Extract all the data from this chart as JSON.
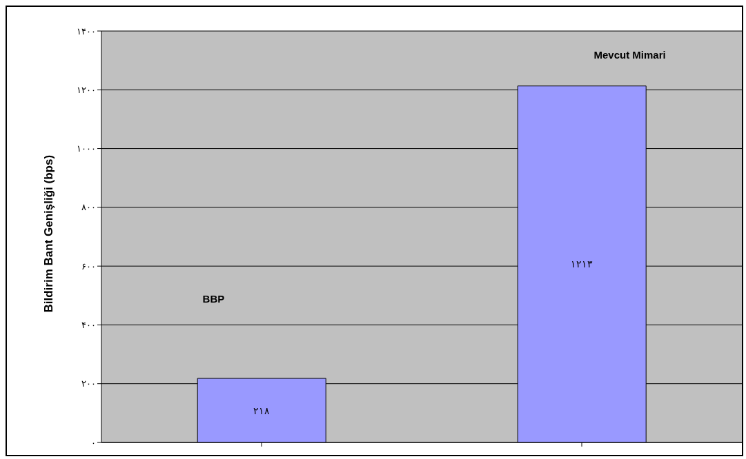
{
  "chart_data": {
    "type": "bar",
    "ylabel": "Bildirim Bant Genişliği (bps)",
    "categories": [
      null,
      null
    ],
    "values": [
      218,
      1213
    ],
    "value_labels": [
      "۲۱۸",
      "۱۲۱۳"
    ],
    "color": "#9999ff",
    "ylim": [
      0,
      1400
    ],
    "yticks": [
      {
        "value": 0,
        "label": "۰"
      },
      {
        "value": 200,
        "label": "۲۰۰"
      },
      {
        "value": 400,
        "label": "۴۰۰"
      },
      {
        "value": 600,
        "label": "۶۰۰"
      },
      {
        "value": 800,
        "label": "۸۰۰"
      },
      {
        "value": 1000,
        "label": "۱۰۰۰"
      },
      {
        "value": 1200,
        "label": "۱۲۰۰"
      },
      {
        "value": 1400,
        "label": "۱۴۰۰"
      }
    ],
    "grid": "y",
    "legend": false,
    "annotations": [
      "BBP",
      "Mevcut Mimari"
    ]
  }
}
